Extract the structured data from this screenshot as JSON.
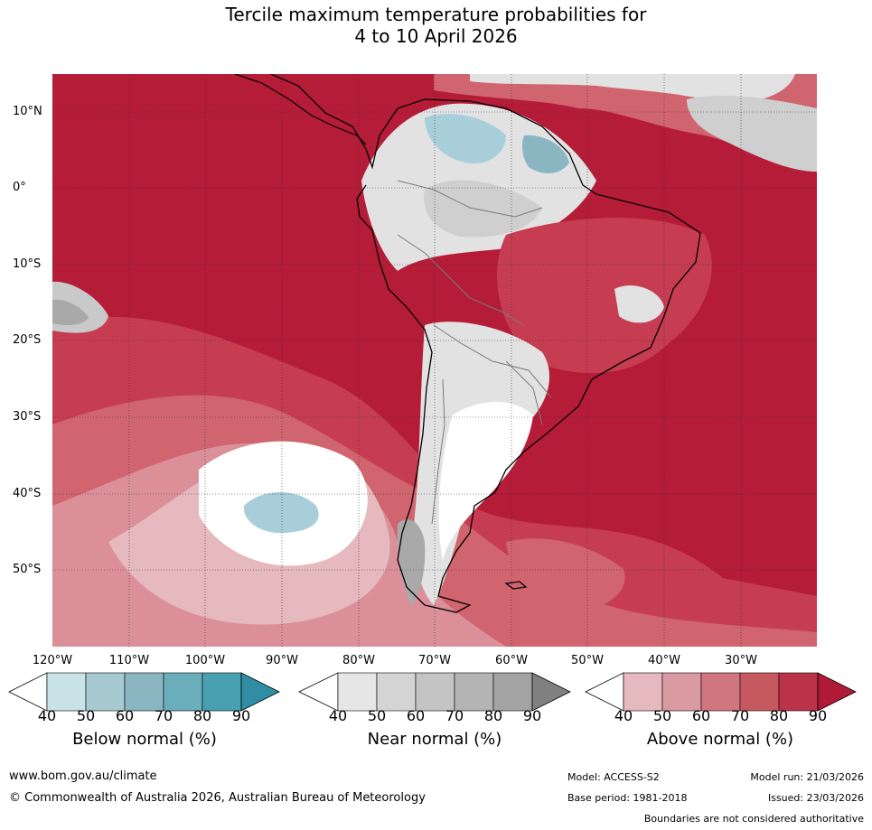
{
  "title": {
    "line1": "Tercile maximum temperature probabilities for",
    "line2": "4 to 10 April 2026"
  },
  "map": {
    "lat_labels": [
      "10°N",
      "0°",
      "10°S",
      "20°S",
      "30°S",
      "40°S",
      "50°S"
    ],
    "lon_labels": [
      "120°W",
      "110°W",
      "100°W",
      "90°W",
      "80°W",
      "70°W",
      "60°W",
      "50°W",
      "40°W",
      "30°W"
    ],
    "colors": {
      "above_90": "#b51c38",
      "above_80": "#c63d52",
      "above_70": "#d0646f",
      "above_60": "#db9099",
      "above_50": "#e5b9bd",
      "near_50": "#e2e2e2",
      "near_60": "#cfcfcf",
      "near_80": "#a9a9a9",
      "below_50": "#a8cfd9",
      "below_60": "#8ab6c2"
    }
  },
  "colorbars": [
    {
      "title": "Below normal (%)",
      "ticks": [
        "40",
        "50",
        "60",
        "70",
        "80",
        "90"
      ],
      "colors": [
        "#ffffff",
        "#c8e2e8",
        "#a7c9d0",
        "#8ab6c2",
        "#6aaebb",
        "#49a0b0",
        "#2f8ea3"
      ]
    },
    {
      "title": "Near normal (%)",
      "ticks": [
        "40",
        "50",
        "60",
        "70",
        "80",
        "90"
      ],
      "colors": [
        "#ffffff",
        "#e6e6e6",
        "#d4d4d4",
        "#c4c4c4",
        "#b4b4b4",
        "#a3a3a3",
        "#808080"
      ]
    },
    {
      "title": "Above normal (%)",
      "ticks": [
        "40",
        "50",
        "60",
        "70",
        "80",
        "90"
      ],
      "colors": [
        "#ffffff",
        "#e5b9bd",
        "#da9aa2",
        "#d0767f",
        "#c6585f",
        "#bb3348",
        "#b01a36"
      ]
    }
  ],
  "footer": {
    "website": "www.bom.gov.au/climate",
    "copyright": "© Commonwealth of Australia 2026, Australian Bureau of Meteorology",
    "model": "Model: ACCESS-S2",
    "base_period": "Base period: 1981-2018",
    "model_run": "Model run: 21/03/2026",
    "issued": "Issued: 23/03/2026",
    "disclaimer": "Boundaries are not considered authoritative"
  }
}
